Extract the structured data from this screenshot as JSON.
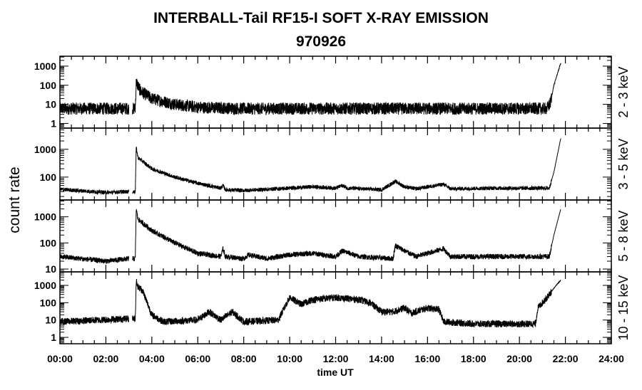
{
  "chart_data": {
    "type": "line",
    "title": "INTERBALL-Tail RF15-I SOFT X-RAY EMISSION",
    "subtitle": "970926",
    "xlabel": "time UT",
    "ylabel": "count rate",
    "xlim": [
      0,
      24
    ],
    "x_tick_labels": [
      "00:00",
      "02:00",
      "04:00",
      "06:00",
      "08:00",
      "10:00",
      "12:00",
      "14:00",
      "16:00",
      "18:00",
      "20:00",
      "22:00",
      "24:00"
    ],
    "yscale": "log",
    "series": [
      {
        "name": "2 - 3 keV",
        "ylim": [
          0.57,
          3300
        ],
        "y_tick_labels": [
          "1",
          "10",
          "100",
          "1000"
        ],
        "noise": 0.32,
        "points": [
          [
            0,
            6
          ],
          [
            3.0,
            6
          ],
          [
            3.1,
            null
          ],
          [
            3.15,
            6
          ],
          [
            3.28,
            6
          ],
          [
            3.32,
            150
          ],
          [
            3.5,
            50
          ],
          [
            4,
            20
          ],
          [
            5,
            10
          ],
          [
            6,
            7
          ],
          [
            8,
            6
          ],
          [
            21.2,
            6
          ],
          [
            21.35,
            12
          ],
          [
            21.5,
            100
          ],
          [
            21.8,
            1500
          ]
        ]
      },
      {
        "name": "3 - 5 keV",
        "ylim": [
          15,
          5800
        ],
        "y_tick_labels": [
          "100",
          "1000"
        ],
        "noise": 0.07,
        "points": [
          [
            0,
            36
          ],
          [
            2,
            28
          ],
          [
            3.0,
            30
          ],
          [
            3.1,
            null
          ],
          [
            3.15,
            30
          ],
          [
            3.28,
            30
          ],
          [
            3.32,
            1200
          ],
          [
            3.4,
            500
          ],
          [
            4,
            200
          ],
          [
            5,
            100
          ],
          [
            6,
            60
          ],
          [
            7,
            40
          ],
          [
            7.1,
            50
          ],
          [
            7.2,
            35
          ],
          [
            8,
            33
          ],
          [
            10,
            40
          ],
          [
            11,
            45
          ],
          [
            12,
            40
          ],
          [
            12.3,
            50
          ],
          [
            12.5,
            40
          ],
          [
            14,
            35
          ],
          [
            14.6,
            70
          ],
          [
            15,
            45
          ],
          [
            15.5,
            38
          ],
          [
            16.7,
            55
          ],
          [
            17,
            38
          ],
          [
            19,
            40
          ],
          [
            21.3,
            40
          ],
          [
            21.5,
            150
          ],
          [
            21.8,
            2500
          ]
        ]
      },
      {
        "name": "5 - 8 keV",
        "ylim": [
          7.8,
          4400
        ],
        "y_tick_labels": [
          "10",
          "100",
          "1000"
        ],
        "noise": 0.1,
        "points": [
          [
            0,
            30
          ],
          [
            2,
            20
          ],
          [
            3.0,
            25
          ],
          [
            3.1,
            null
          ],
          [
            3.15,
            25
          ],
          [
            3.28,
            25
          ],
          [
            3.32,
            2000
          ],
          [
            3.4,
            800
          ],
          [
            4,
            300
          ],
          [
            5,
            100
          ],
          [
            6,
            40
          ],
          [
            7,
            30
          ],
          [
            7.1,
            60
          ],
          [
            7.2,
            30
          ],
          [
            8,
            25
          ],
          [
            8.2,
            35
          ],
          [
            9,
            25
          ],
          [
            10,
            35
          ],
          [
            11,
            40
          ],
          [
            12,
            30
          ],
          [
            12.3,
            50
          ],
          [
            13,
            30
          ],
          [
            14.5,
            25
          ],
          [
            14.6,
            80
          ],
          [
            15,
            50
          ],
          [
            15.5,
            30
          ],
          [
            16.7,
            60
          ],
          [
            17,
            30
          ],
          [
            19,
            30
          ],
          [
            21.3,
            30
          ],
          [
            21.5,
            200
          ],
          [
            21.8,
            2000
          ]
        ]
      },
      {
        "name": "10 - 15 keV",
        "ylim": [
          0.43,
          6000
        ],
        "y_tick_labels": [
          "1",
          "10",
          "100",
          "1000"
        ],
        "noise": 0.2,
        "points": [
          [
            0,
            8
          ],
          [
            3.0,
            12
          ],
          [
            3.1,
            null
          ],
          [
            3.15,
            12
          ],
          [
            3.28,
            12
          ],
          [
            3.32,
            2000
          ],
          [
            3.4,
            800
          ],
          [
            3.6,
            500
          ],
          [
            4,
            20
          ],
          [
            4.5,
            8
          ],
          [
            6,
            10
          ],
          [
            6.5,
            30
          ],
          [
            7,
            10
          ],
          [
            7.5,
            30
          ],
          [
            8,
            8
          ],
          [
            9.5,
            10
          ],
          [
            10,
            200
          ],
          [
            10.5,
            80
          ],
          [
            11,
            150
          ],
          [
            12,
            200
          ],
          [
            13,
            150
          ],
          [
            13.5,
            100
          ],
          [
            14,
            30
          ],
          [
            14.5,
            30
          ],
          [
            15,
            50
          ],
          [
            15.3,
            25
          ],
          [
            16,
            50
          ],
          [
            16.5,
            40
          ],
          [
            16.7,
            8
          ],
          [
            18,
            6
          ],
          [
            20.7,
            6
          ],
          [
            20.8,
            50
          ],
          [
            21.2,
            200
          ],
          [
            21.6,
            1000
          ],
          [
            21.8,
            2000
          ]
        ]
      }
    ]
  }
}
